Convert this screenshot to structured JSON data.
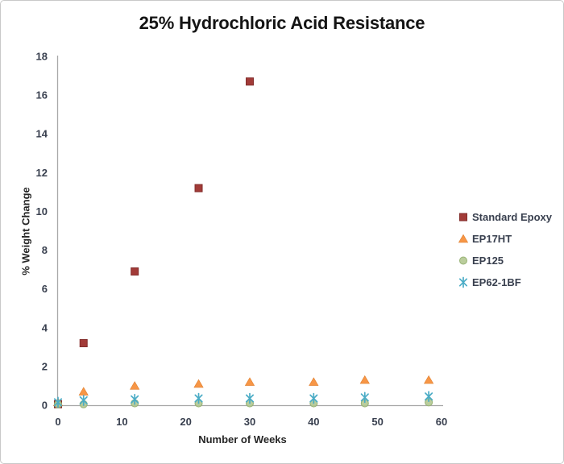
{
  "chart_data": {
    "type": "scatter",
    "title": "25% Hydrochloric Acid Resistance",
    "xlabel": "Number of Weeks",
    "ylabel": "% Weight Change",
    "xlim": [
      0,
      60
    ],
    "ylim": [
      0,
      18
    ],
    "xticks": [
      0,
      10,
      20,
      30,
      40,
      50,
      60
    ],
    "yticks": [
      0,
      2,
      4,
      6,
      8,
      10,
      12,
      14,
      16,
      18
    ],
    "grid": false,
    "legend_position": "right",
    "axis_color": "#a8a8a8",
    "series": [
      {
        "name": "Standard Epoxy",
        "marker": "square",
        "color": "#a23b38",
        "edge": "#832e2c",
        "points": [
          [
            0,
            0.05
          ],
          [
            4,
            3.2
          ],
          [
            12,
            6.9
          ],
          [
            22,
            11.2
          ],
          [
            30,
            16.7
          ]
        ]
      },
      {
        "name": "EP17HT",
        "marker": "triangle",
        "color": "#f79646",
        "edge": "#e07f2e",
        "points": [
          [
            0,
            0.15
          ],
          [
            4,
            0.7
          ],
          [
            12,
            1.0
          ],
          [
            22,
            1.1
          ],
          [
            30,
            1.2
          ],
          [
            40,
            1.2
          ],
          [
            48,
            1.3
          ],
          [
            58,
            1.3
          ]
        ]
      },
      {
        "name": "EP125",
        "marker": "circle",
        "color": "#b2c891",
        "edge": "#97b274",
        "points": [
          [
            0,
            0.05
          ],
          [
            4,
            0.05
          ],
          [
            12,
            0.1
          ],
          [
            22,
            0.1
          ],
          [
            30,
            0.1
          ],
          [
            40,
            0.1
          ],
          [
            48,
            0.1
          ],
          [
            58,
            0.15
          ]
        ]
      },
      {
        "name": "EP62-1BF",
        "marker": "asterisk",
        "color": "#4bacc6",
        "edge": "#4bacc6",
        "points": [
          [
            0,
            0.15
          ],
          [
            4,
            0.25
          ],
          [
            12,
            0.3
          ],
          [
            22,
            0.35
          ],
          [
            30,
            0.35
          ],
          [
            40,
            0.35
          ],
          [
            48,
            0.4
          ],
          [
            58,
            0.45
          ]
        ]
      }
    ]
  }
}
